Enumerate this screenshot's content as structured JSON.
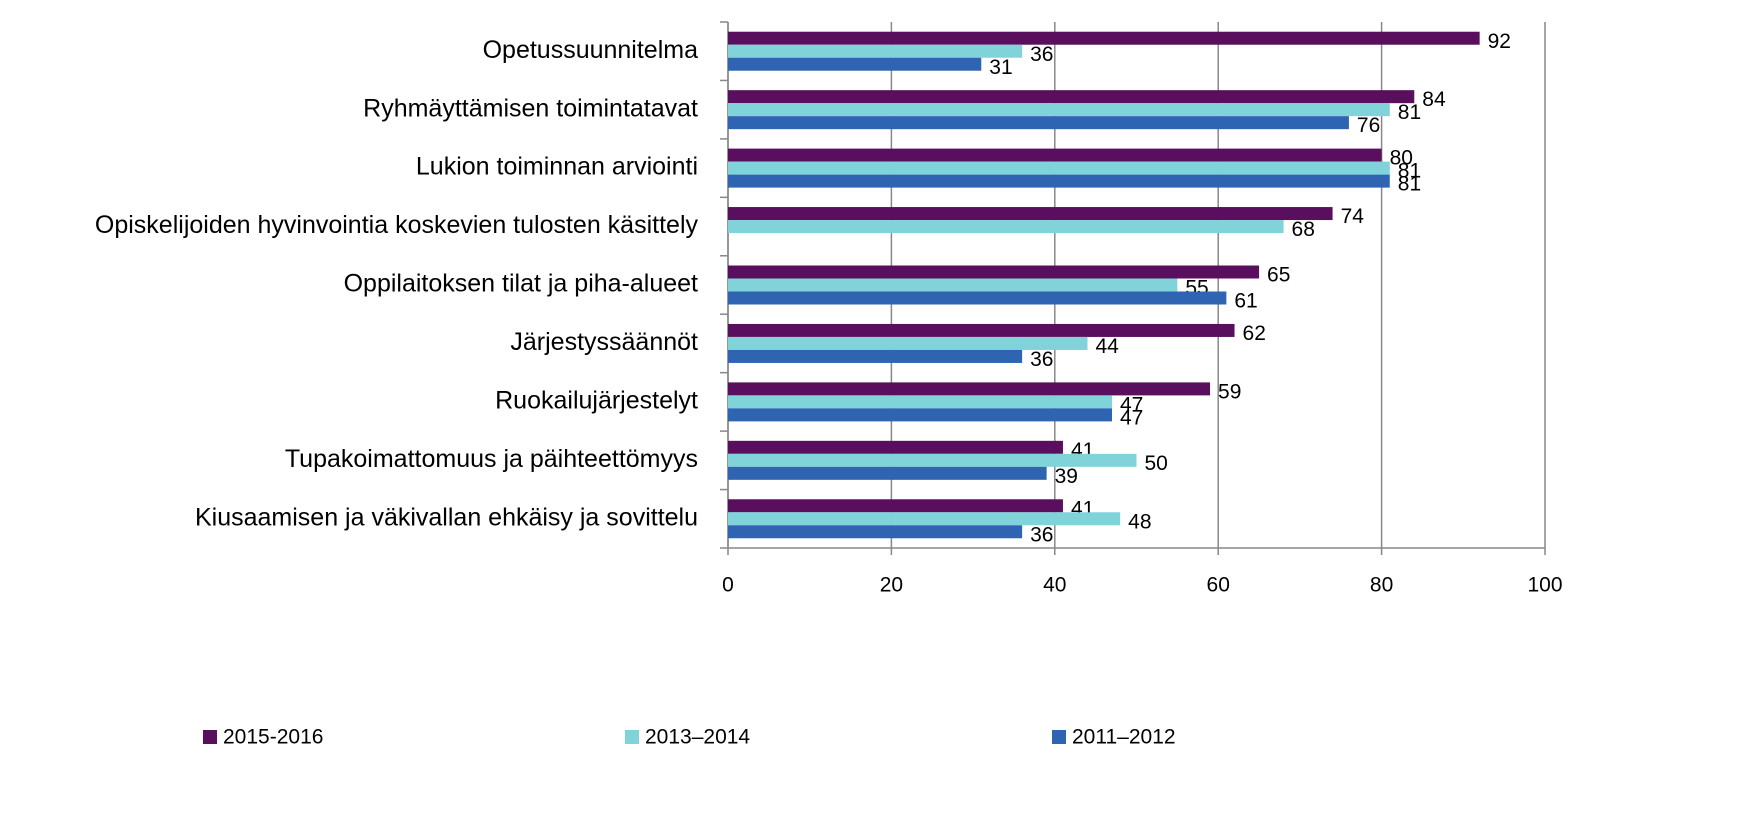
{
  "chart_data": {
    "type": "hbar",
    "categories": [
      "Opetussuunnitelma",
      "Ryhmäyttämisen toimintatavat",
      "Lukion toiminnan arviointi",
      "Opiskelijoiden hyvinvointia koskevien tulosten käsittely",
      "Oppilaitoksen tilat ja piha-alueet",
      "Järjestyssäännöt",
      "Ruokailujärjestelyt",
      "Tupakoimattomuus ja päihteettömyys",
      "Kiusaamisen ja väkivallan ehkäisy ja sovittelu"
    ],
    "series": [
      {
        "name": "2015-2016",
        "color": "#5a0f5e",
        "values": [
          92,
          84,
          80,
          74,
          65,
          62,
          59,
          41,
          41
        ]
      },
      {
        "name": "2013–2014",
        "color": "#7fd3d9",
        "values": [
          36,
          81,
          81,
          68,
          55,
          44,
          47,
          50,
          48
        ]
      },
      {
        "name": "2011–2012",
        "color": "#2e64b2",
        "values": [
          31,
          76,
          81,
          null,
          61,
          36,
          47,
          39,
          36
        ]
      }
    ],
    "xlim": [
      0,
      100
    ],
    "xticks": [
      0,
      20,
      40,
      60,
      80,
      100
    ],
    "grid": true,
    "legend": "bottom"
  }
}
